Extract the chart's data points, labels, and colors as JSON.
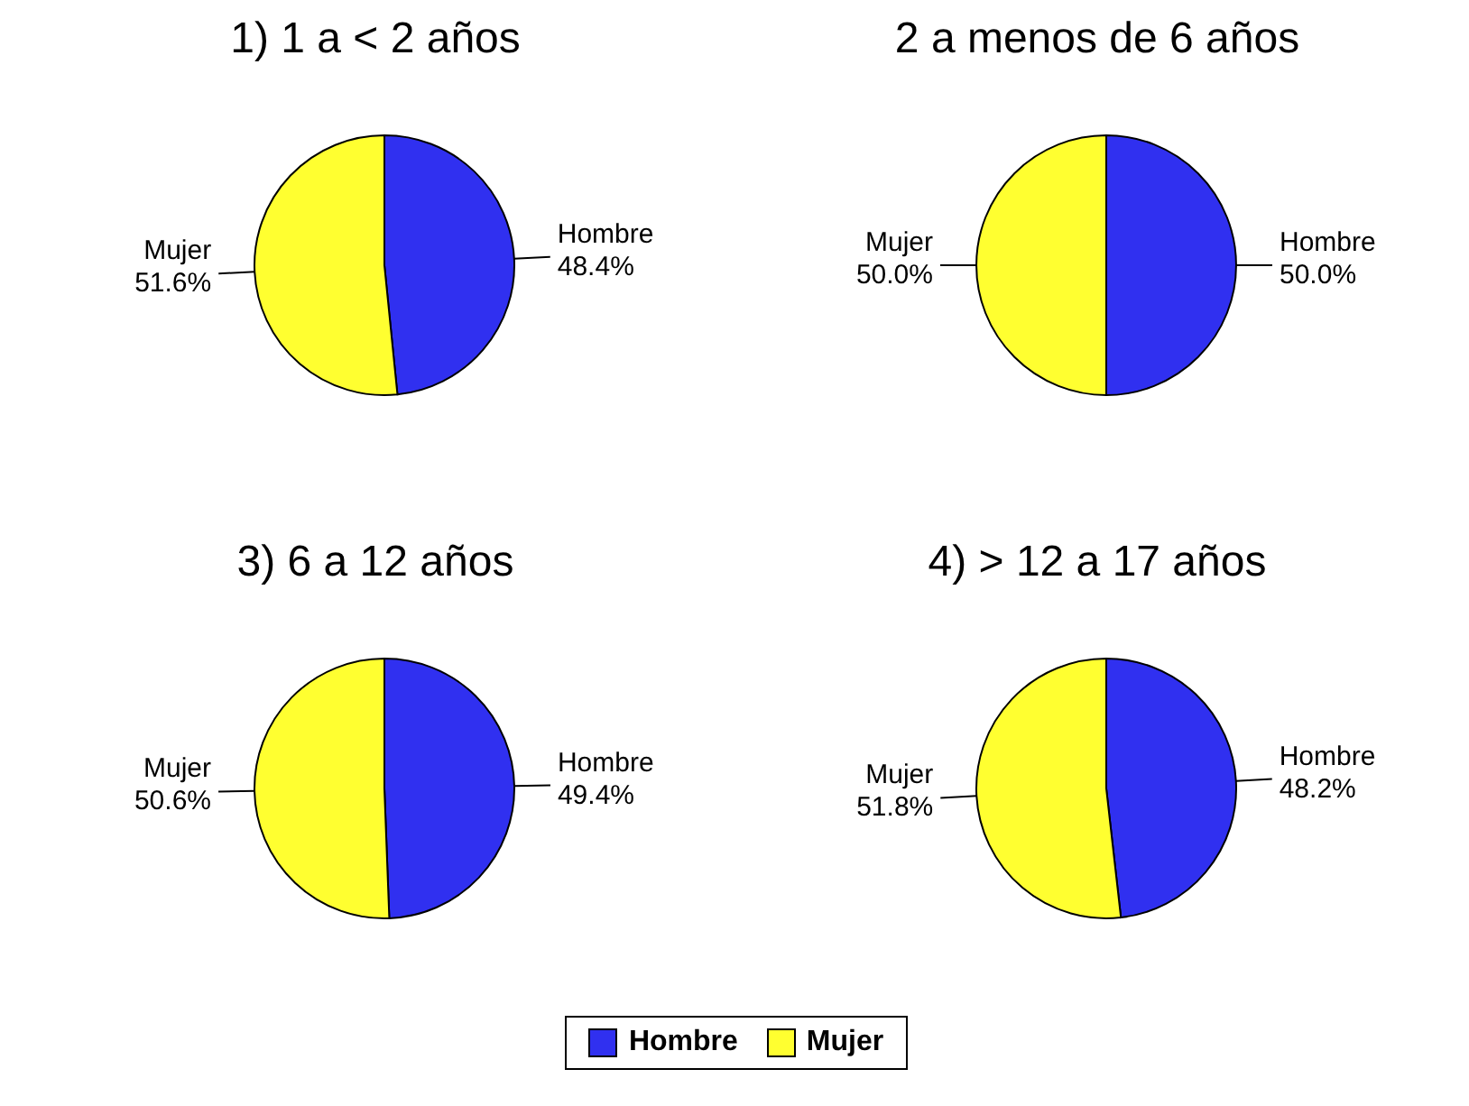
{
  "chart_data": [
    {
      "type": "pie",
      "title": "1) 1 a < 2 años",
      "categories": [
        "Hombre",
        "Mujer"
      ],
      "values": [
        48.4,
        51.6
      ],
      "value_labels": [
        "48.4%",
        "51.6%"
      ],
      "colors": [
        "#3030f0",
        "#ffff30"
      ]
    },
    {
      "type": "pie",
      "title": "2 a menos de 6 años",
      "categories": [
        "Hombre",
        "Mujer"
      ],
      "values": [
        50.0,
        50.0
      ],
      "value_labels": [
        "50.0%",
        "50.0%"
      ],
      "colors": [
        "#3030f0",
        "#ffff30"
      ]
    },
    {
      "type": "pie",
      "title": "3) 6 a 12 años",
      "categories": [
        "Hombre",
        "Mujer"
      ],
      "values": [
        49.4,
        50.6
      ],
      "value_labels": [
        "49.4%",
        "50.6%"
      ],
      "colors": [
        "#3030f0",
        "#ffff30"
      ]
    },
    {
      "type": "pie",
      "title": "4) > 12 a 17 años",
      "categories": [
        "Hombre",
        "Mujer"
      ],
      "values": [
        48.2,
        51.8
      ],
      "value_labels": [
        "48.2%",
        "51.8%"
      ],
      "colors": [
        "#3030f0",
        "#ffff30"
      ],
      "legend": "bottom"
    }
  ]
}
